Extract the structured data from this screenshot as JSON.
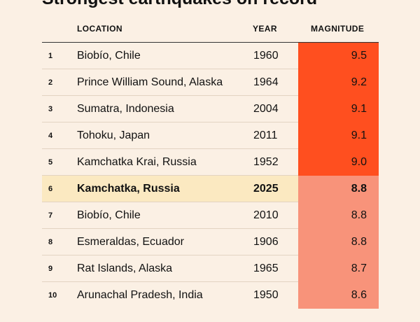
{
  "title": "Strongest earthquakes on record",
  "chart_data": {
    "type": "table",
    "columns": [
      "",
      "LOCATION",
      "YEAR",
      "MAGNITUDE"
    ],
    "rows": [
      {
        "rank": "1",
        "location": "Biobío, Chile",
        "year": "1960",
        "magnitude": "9.5"
      },
      {
        "rank": "2",
        "location": "Prince William Sound, Alaska",
        "year": "1964",
        "magnitude": "9.2"
      },
      {
        "rank": "3",
        "location": "Sumatra, Indonesia",
        "year": "2004",
        "magnitude": "9.1"
      },
      {
        "rank": "4",
        "location": "Tohoku, Japan",
        "year": "2011",
        "magnitude": "9.1"
      },
      {
        "rank": "5",
        "location": "Kamchatka Krai, Russia",
        "year": "1952",
        "magnitude": "9.0"
      },
      {
        "rank": "6",
        "location": "Kamchatka, Russia",
        "year": "2025",
        "magnitude": "8.8",
        "highlight": true
      },
      {
        "rank": "7",
        "location": "Biobío, Chile",
        "year": "2010",
        "magnitude": "8.8"
      },
      {
        "rank": "8",
        "location": "Esmeraldas, Ecuador",
        "year": "1906",
        "magnitude": "8.8"
      },
      {
        "rank": "9",
        "location": "Rat Islands, Alaska",
        "year": "1965",
        "magnitude": "8.7"
      },
      {
        "rank": "10",
        "location": "Arunachal Pradesh, India",
        "year": "1950",
        "magnitude": "8.6"
      }
    ],
    "highlight_color": "#fbe9c1",
    "magnitude_colors": {
      "9.0_and_above": "#ff4f1f",
      "below_9.0": "#f8937a"
    }
  }
}
